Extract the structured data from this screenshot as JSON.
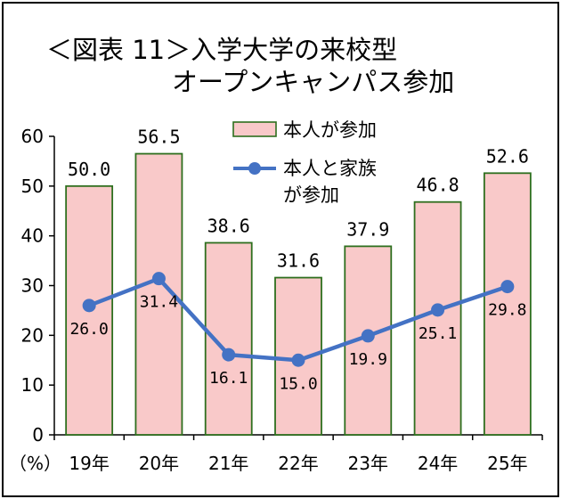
{
  "chart_data": {
    "type": "bar",
    "title_line1": "＜図表 11＞入学大学の来校型",
    "title_line2": "オープンキャンパス参加",
    "unit_label": "（%）",
    "categories": [
      "19年",
      "20年",
      "21年",
      "22年",
      "23年",
      "24年",
      "25年"
    ],
    "ylim": [
      0,
      60
    ],
    "yticks": [
      0,
      10,
      20,
      30,
      40,
      50,
      60
    ],
    "grid": false,
    "legend_position": "top-right",
    "series": [
      {
        "name": "本人が参加",
        "type": "bar",
        "values": [
          50.0,
          56.5,
          38.6,
          31.6,
          37.9,
          46.8,
          52.6
        ],
        "labels": [
          "50.0",
          "56.5",
          "38.6",
          "31.6",
          "37.9",
          "46.8",
          "52.6"
        ],
        "color": "#f9c9c9",
        "border_color": "#2e6f1e"
      },
      {
        "name": "本人と家族が参加",
        "legend_lines": [
          "本人と家族",
          "が参加"
        ],
        "type": "line",
        "values": [
          26.0,
          31.4,
          16.1,
          15.0,
          19.9,
          25.1,
          29.8
        ],
        "labels": [
          "26.0",
          "31.4",
          "16.1",
          "15.0",
          "19.9",
          "25.1",
          "29.8"
        ],
        "color": "#4472c4"
      }
    ]
  }
}
